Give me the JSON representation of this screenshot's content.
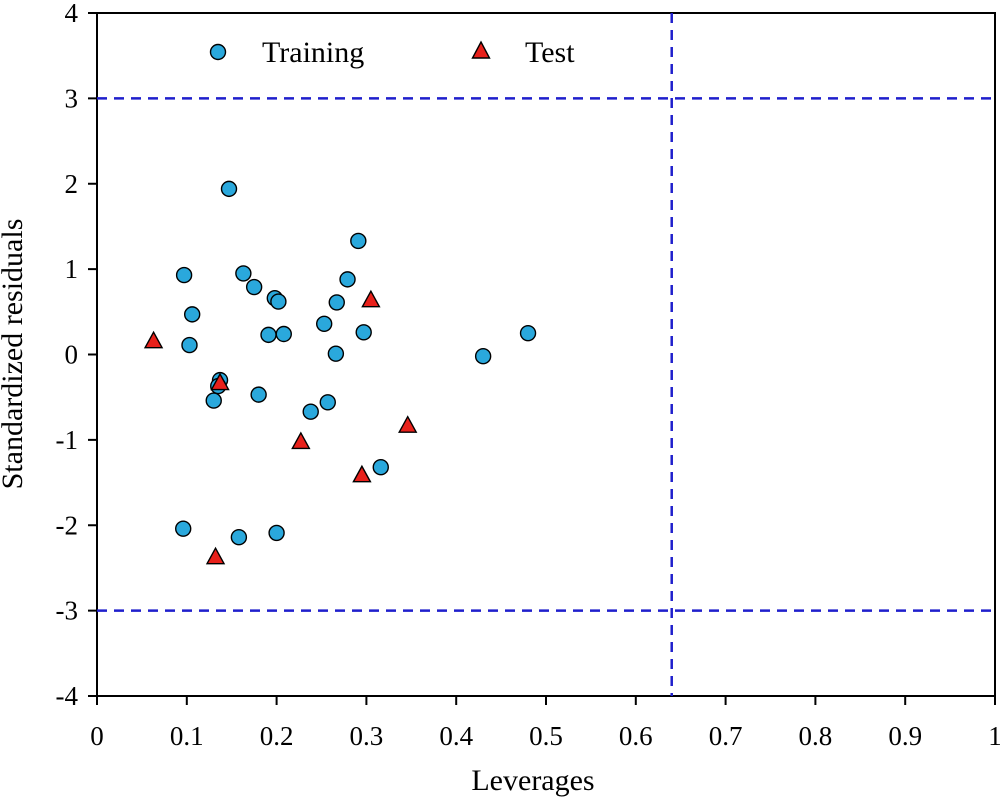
{
  "chart_data": {
    "type": "scatter",
    "title": "",
    "xlabel": "Leverages",
    "ylabel": "Standardized residuals",
    "xlim": [
      0,
      1
    ],
    "ylim": [
      -4,
      4
    ],
    "x_ticks": [
      0,
      0.1,
      0.2,
      0.3,
      0.4,
      0.5,
      0.6,
      0.7,
      0.8,
      0.9,
      1
    ],
    "x_tick_labels": [
      "0",
      "0.1",
      "0.2",
      "0.3",
      "0.4",
      "0.5",
      "0.6",
      "0.7",
      "0.8",
      "0.9",
      "1"
    ],
    "y_ticks": [
      -4,
      -3,
      -2,
      -1,
      0,
      1,
      2,
      3,
      4
    ],
    "y_tick_labels": [
      "-4",
      "-3",
      "-2",
      "-1",
      "0",
      "1",
      "2",
      "3",
      "4"
    ],
    "grid": false,
    "legend_position": "top-left",
    "reference_lines": {
      "horizontal": [
        3,
        -3
      ],
      "vertical": [
        0.64
      ],
      "style": "dashed",
      "color": "#1f1fcc"
    },
    "series": [
      {
        "name": "Training",
        "marker": "circle",
        "color": "#2aa8dc",
        "points": [
          {
            "x": 0.147,
            "y": 1.94
          },
          {
            "x": 0.291,
            "y": 1.33
          },
          {
            "x": 0.097,
            "y": 0.93
          },
          {
            "x": 0.163,
            "y": 0.95
          },
          {
            "x": 0.175,
            "y": 0.79
          },
          {
            "x": 0.279,
            "y": 0.88
          },
          {
            "x": 0.198,
            "y": 0.66
          },
          {
            "x": 0.202,
            "y": 0.62
          },
          {
            "x": 0.267,
            "y": 0.61
          },
          {
            "x": 0.106,
            "y": 0.47
          },
          {
            "x": 0.253,
            "y": 0.36
          },
          {
            "x": 0.191,
            "y": 0.23
          },
          {
            "x": 0.208,
            "y": 0.24
          },
          {
            "x": 0.297,
            "y": 0.26
          },
          {
            "x": 0.48,
            "y": 0.25
          },
          {
            "x": 0.103,
            "y": 0.11
          },
          {
            "x": 0.266,
            "y": 0.01
          },
          {
            "x": 0.43,
            "y": -0.02
          },
          {
            "x": 0.137,
            "y": -0.3
          },
          {
            "x": 0.135,
            "y": -0.37
          },
          {
            "x": 0.18,
            "y": -0.47
          },
          {
            "x": 0.13,
            "y": -0.54
          },
          {
            "x": 0.257,
            "y": -0.56
          },
          {
            "x": 0.238,
            "y": -0.67
          },
          {
            "x": 0.316,
            "y": -1.32
          },
          {
            "x": 0.096,
            "y": -2.04
          },
          {
            "x": 0.158,
            "y": -2.14
          },
          {
            "x": 0.2,
            "y": -2.09
          }
        ]
      },
      {
        "name": "Test",
        "marker": "triangle",
        "color": "#e8211b",
        "points": [
          {
            "x": 0.063,
            "y": 0.15
          },
          {
            "x": 0.305,
            "y": 0.63
          },
          {
            "x": 0.137,
            "y": -0.34
          },
          {
            "x": 0.346,
            "y": -0.84
          },
          {
            "x": 0.227,
            "y": -1.03
          },
          {
            "x": 0.295,
            "y": -1.42
          },
          {
            "x": 0.132,
            "y": -2.38
          }
        ]
      }
    ]
  }
}
